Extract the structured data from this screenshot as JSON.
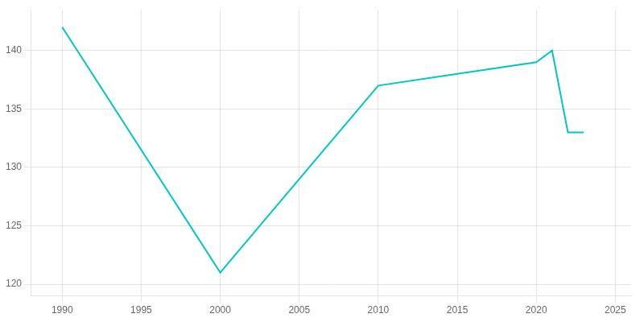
{
  "chart_data": {
    "type": "line",
    "x": [
      1990,
      2000,
      2005,
      2010,
      2015,
      2020,
      2021,
      2022,
      2023
    ],
    "values": [
      142,
      121,
      129,
      137,
      138,
      139,
      140,
      133,
      133
    ],
    "color": "#00c5c5",
    "xlim": [
      1988,
      2026
    ],
    "xticks": [
      1990,
      1995,
      2000,
      2005,
      2010,
      2015,
      2020,
      2025
    ],
    "ylim": [
      119,
      143.5
    ],
    "yticks": [
      120,
      125,
      130,
      135,
      140
    ],
    "grid": true
  }
}
